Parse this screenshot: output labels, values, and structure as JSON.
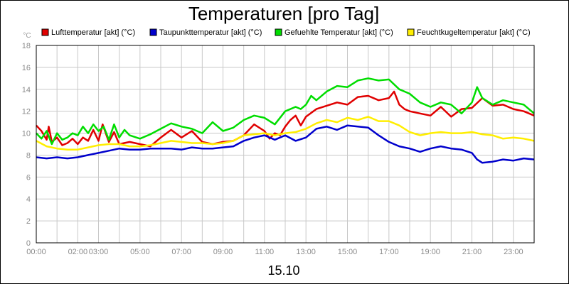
{
  "chart_data": {
    "type": "line",
    "title": "Temperaturen [pro Tag]",
    "ylabel": "°C",
    "xlabel": "15.10",
    "ylim": [
      0,
      18
    ],
    "xlim_hours": [
      0,
      24
    ],
    "y_ticks": [
      "0",
      "2",
      "4",
      "6",
      "8",
      "10",
      "12",
      "14",
      "16",
      "18"
    ],
    "x_ticks": [
      {
        "label": "00:00",
        "h": 0
      },
      {
        "label": "02:00",
        "h": 2
      },
      {
        "label": "03:00",
        "h": 3
      },
      {
        "label": "05:00",
        "h": 5
      },
      {
        "label": "07:00",
        "h": 7
      },
      {
        "label": "09:00",
        "h": 9
      },
      {
        "label": "11:00",
        "h": 11
      },
      {
        "label": "13:00",
        "h": 13
      },
      {
        "label": "15:00",
        "h": 15
      },
      {
        "label": "17:00",
        "h": 17
      },
      {
        "label": "19:00",
        "h": 19
      },
      {
        "label": "21:00",
        "h": 21
      },
      {
        "label": "23:00",
        "h": 23
      }
    ],
    "grid": true,
    "legend_position": "top",
    "series": [
      {
        "name": "Lufttemperatur [akt] (°C)",
        "color": "#e00000",
        "x": [
          0,
          0.25,
          0.5,
          0.6,
          0.75,
          1,
          1.25,
          1.5,
          1.75,
          2,
          2.25,
          2.5,
          2.75,
          3,
          3.2,
          3.5,
          3.75,
          4,
          4.5,
          5,
          5.5,
          6,
          6.5,
          7,
          7.5,
          8,
          8.5,
          9,
          9.5,
          10,
          10.5,
          11,
          11.25,
          11.5,
          11.75,
          12,
          12.25,
          12.5,
          12.75,
          13,
          13.5,
          14,
          14.5,
          15,
          15.5,
          16,
          16.5,
          17,
          17.25,
          17.5,
          17.75,
          18,
          18.5,
          19,
          19.5,
          20,
          20.5,
          21,
          21.5,
          22,
          22.5,
          23,
          23.5,
          24
        ],
        "y": [
          10.7,
          10.2,
          9.4,
          10.6,
          9.2,
          9.6,
          8.9,
          9.1,
          9.5,
          9.0,
          9.6,
          9.3,
          10.3,
          9.3,
          10.8,
          9.2,
          10.1,
          9.0,
          9.2,
          9.0,
          8.8,
          9.6,
          10.3,
          9.6,
          10.2,
          9.2,
          9.0,
          9.2,
          9.3,
          9.8,
          10.8,
          10.2,
          9.5,
          10.0,
          9.8,
          10.6,
          11.2,
          11.6,
          10.7,
          11.5,
          12.2,
          12.5,
          12.8,
          12.6,
          13.3,
          13.4,
          13.0,
          13.2,
          13.8,
          12.6,
          12.2,
          12.0,
          11.8,
          11.6,
          12.4,
          11.5,
          12.2,
          12.3,
          13.2,
          12.5,
          12.6,
          12.2,
          12.0,
          11.6
        ]
      },
      {
        "name": "Taupunkttemperatur [akt] (°C)",
        "color": "#0000cc",
        "x": [
          0,
          0.5,
          1,
          1.5,
          2,
          2.5,
          3,
          3.5,
          4,
          4.5,
          5,
          5.5,
          6,
          6.5,
          7,
          7.5,
          8,
          8.5,
          9,
          9.5,
          10,
          10.5,
          11,
          11.5,
          12,
          12.5,
          13,
          13.5,
          14,
          14.5,
          15,
          15.5,
          16,
          16.5,
          17,
          17.5,
          18,
          18.5,
          19,
          19.5,
          20,
          20.5,
          21,
          21.25,
          21.5,
          22,
          22.5,
          23,
          23.5,
          24
        ],
        "y": [
          7.8,
          7.7,
          7.8,
          7.7,
          7.8,
          8.0,
          8.2,
          8.4,
          8.6,
          8.5,
          8.5,
          8.6,
          8.6,
          8.6,
          8.5,
          8.7,
          8.6,
          8.6,
          8.7,
          8.8,
          9.3,
          9.6,
          9.8,
          9.4,
          9.8,
          9.3,
          9.6,
          10.4,
          10.6,
          10.3,
          10.7,
          10.6,
          10.5,
          9.8,
          9.2,
          8.8,
          8.6,
          8.3,
          8.6,
          8.8,
          8.6,
          8.5,
          8.2,
          7.6,
          7.3,
          7.4,
          7.6,
          7.5,
          7.7,
          7.6
        ]
      },
      {
        "name": "Gefuehlte Temperatur [akt] (°C)",
        "color": "#00dd00",
        "x": [
          0,
          0.25,
          0.5,
          0.75,
          1,
          1.25,
          1.5,
          1.75,
          2,
          2.25,
          2.5,
          2.75,
          3,
          3.25,
          3.5,
          3.75,
          4,
          4.25,
          4.5,
          5,
          5.5,
          6,
          6.5,
          7,
          7.5,
          8,
          8.5,
          9,
          9.5,
          10,
          10.5,
          11,
          11.5,
          12,
          12.5,
          12.75,
          13,
          13.25,
          13.5,
          14,
          14.5,
          15,
          15.5,
          16,
          16.5,
          17,
          17.5,
          18,
          18.5,
          19,
          19.5,
          20,
          20.5,
          21,
          21.25,
          21.5,
          22,
          22.5,
          23,
          23.5,
          24
        ],
        "y": [
          10.0,
          9.5,
          10.2,
          9.0,
          10.0,
          9.4,
          9.6,
          10.0,
          9.8,
          10.6,
          10.0,
          10.8,
          10.2,
          10.6,
          9.4,
          10.8,
          9.6,
          10.3,
          9.8,
          9.5,
          9.9,
          10.4,
          10.9,
          10.6,
          10.4,
          10.0,
          11.0,
          10.2,
          10.5,
          11.2,
          11.6,
          11.4,
          10.8,
          12.0,
          12.4,
          12.2,
          12.6,
          13.4,
          13.0,
          13.8,
          14.3,
          14.2,
          14.8,
          15.0,
          14.8,
          14.9,
          14.0,
          13.6,
          12.8,
          12.4,
          12.8,
          12.6,
          11.8,
          12.8,
          14.2,
          13.2,
          12.6,
          13.0,
          12.8,
          12.6,
          11.8
        ]
      },
      {
        "name": "Feuchtkugeltemperatur [akt] (°C)",
        "color": "#ffee00",
        "x": [
          0,
          0.5,
          1,
          1.5,
          2,
          2.5,
          3,
          3.5,
          4,
          4.5,
          5,
          5.5,
          6,
          6.5,
          7,
          7.5,
          8,
          8.5,
          9,
          9.5,
          10,
          10.5,
          11,
          11.5,
          12,
          12.5,
          13,
          13.5,
          14,
          14.5,
          15,
          15.5,
          16,
          16.5,
          17,
          17.5,
          18,
          18.5,
          19,
          19.5,
          20,
          20.5,
          21,
          21.5,
          22,
          22.5,
          23,
          23.5,
          24
        ],
        "y": [
          9.3,
          8.8,
          8.6,
          8.5,
          8.5,
          8.7,
          8.9,
          9.0,
          9.0,
          8.8,
          8.8,
          8.9,
          9.1,
          9.3,
          9.2,
          9.1,
          9.1,
          9.0,
          9.1,
          9.3,
          9.8,
          9.9,
          10.0,
          9.8,
          10.0,
          10.1,
          10.4,
          10.9,
          11.2,
          11.0,
          11.4,
          11.2,
          11.5,
          11.1,
          11.1,
          10.7,
          10.1,
          9.8,
          10.0,
          10.1,
          10.0,
          10.0,
          10.1,
          9.9,
          9.8,
          9.5,
          9.6,
          9.5,
          9.3
        ]
      }
    ]
  }
}
